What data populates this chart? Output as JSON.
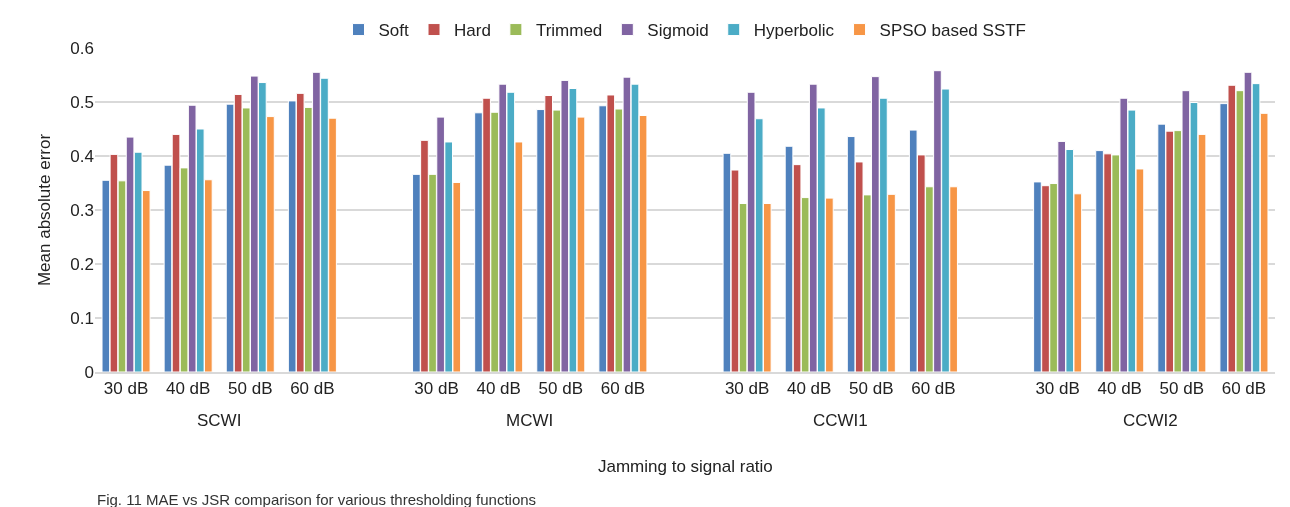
{
  "chart_data": {
    "type": "bar",
    "xlabel": "Jamming to signal ratio",
    "ylabel": "Mean absolute error",
    "categories": [
      "30 dB",
      "40 dB",
      "50 dB",
      "60 dB",
      null,
      "30 dB",
      "40 dB",
      "50 dB",
      "60 dB",
      null,
      "30 dB",
      "40 dB",
      "50 dB",
      "60 dB",
      null,
      "30 dB",
      "40 dB",
      "50 dB",
      "60 dB"
    ],
    "series": [
      {
        "name": "Soft",
        "color": "#4f81bd",
        "values": [
          0.355,
          0.383,
          0.496,
          0.502,
          null,
          0.366,
          0.48,
          0.486,
          0.493,
          null,
          0.405,
          0.418,
          0.436,
          0.448,
          null,
          0.352,
          0.41,
          0.459,
          0.497
        ]
      },
      {
        "name": "Hard",
        "color": "#c0504d",
        "values": [
          0.403,
          0.44,
          0.514,
          0.516,
          null,
          0.429,
          0.507,
          0.512,
          0.513,
          null,
          0.374,
          0.384,
          0.389,
          0.402,
          null,
          0.345,
          0.404,
          0.446,
          0.531
        ]
      },
      {
        "name": "Trimmed",
        "color": "#9bbb59",
        "values": [
          0.354,
          0.378,
          0.489,
          0.49,
          null,
          0.366,
          0.481,
          0.485,
          0.487,
          null,
          0.312,
          0.323,
          0.328,
          0.343,
          null,
          0.349,
          0.402,
          0.447,
          0.521
        ]
      },
      {
        "name": "Sigmoid",
        "color": "#8064a2",
        "values": [
          0.435,
          0.494,
          0.548,
          0.555,
          null,
          0.472,
          0.533,
          0.54,
          0.546,
          null,
          0.518,
          0.533,
          0.547,
          0.558,
          null,
          0.427,
          0.507,
          0.521,
          0.555
        ]
      },
      {
        "name": "Hyperbolic",
        "color": "#4bacc6",
        "values": [
          0.407,
          0.45,
          0.536,
          0.544,
          null,
          0.426,
          0.518,
          0.525,
          0.533,
          null,
          0.469,
          0.489,
          0.507,
          0.524,
          null,
          0.412,
          0.485,
          0.499,
          0.534
        ]
      },
      {
        "name": "SPSO based SSTF",
        "color": "#f79646",
        "values": [
          0.336,
          0.356,
          0.473,
          0.47,
          null,
          0.351,
          0.426,
          0.472,
          0.475,
          null,
          0.312,
          0.322,
          0.329,
          0.343,
          null,
          0.33,
          0.376,
          0.44,
          0.479
        ]
      }
    ],
    "ylim": [
      0,
      0.6
    ],
    "yticks": [
      0,
      0.1,
      0.2,
      0.3,
      0.4,
      0.5,
      0.6
    ],
    "grid": "y",
    "legend": "top",
    "annotations": [
      "SCWI",
      "MCWI",
      "CCWI1",
      "CCWI2",
      "Fig. 11 MAE vs JSR comparison for various thresholding functions"
    ]
  }
}
